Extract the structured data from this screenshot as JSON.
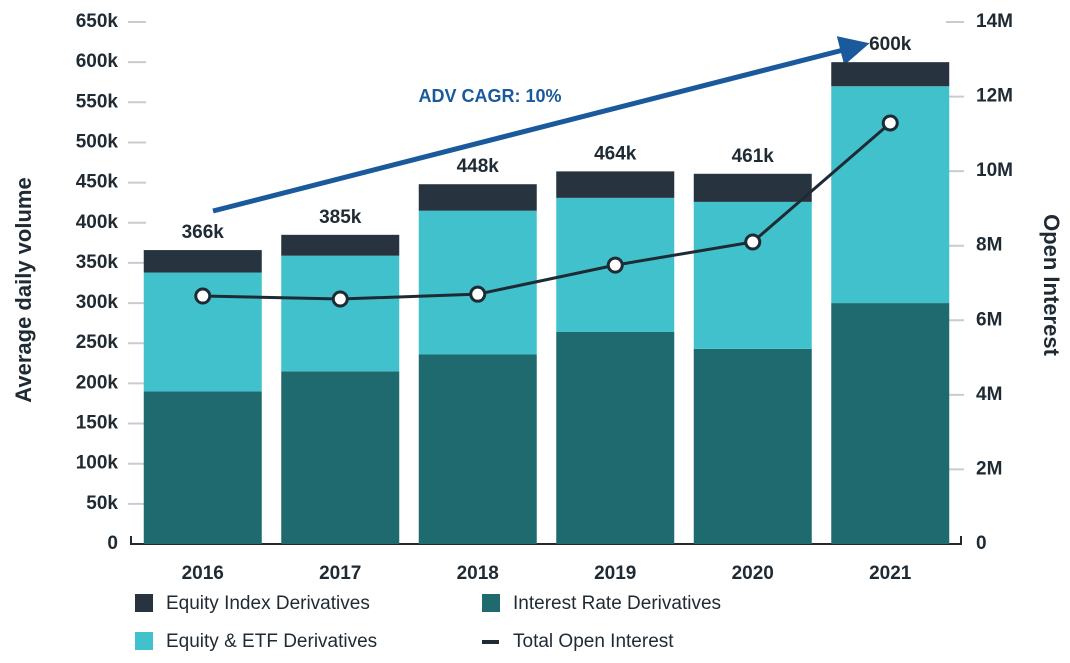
{
  "chart_data": {
    "type": "bar",
    "stacked": true,
    "categories": [
      "2016",
      "2017",
      "2018",
      "2019",
      "2020",
      "2021"
    ],
    "series": [
      {
        "name": "Interest Rate Derivatives",
        "color": "#1f6a6e",
        "values": [
          190000,
          215000,
          236000,
          264000,
          243000,
          300000
        ]
      },
      {
        "name": "Equity & ETF Derivatives",
        "color": "#40c1cb",
        "values": [
          148000,
          144000,
          179000,
          167000,
          183000,
          270000
        ]
      },
      {
        "name": "Equity Index Derivatives",
        "color": "#27343f",
        "values": [
          28000,
          26000,
          33000,
          33000,
          35000,
          30000
        ]
      },
      {
        "name": "Total Open Interest",
        "color": "#1e2b35",
        "type": "line",
        "axis": "y2",
        "values": [
          6650000,
          6570000,
          6700000,
          7480000,
          8100000,
          11290000
        ]
      }
    ],
    "totals": {
      "values": [
        366000,
        385000,
        448000,
        464000,
        461000,
        600000
      ],
      "value_labels": [
        "366k",
        "385k",
        "448k",
        "464k",
        "461k",
        "600k"
      ]
    },
    "ylabel": "Average daily volume",
    "y2label": "Open Interest",
    "annotations": [
      {
        "text": "ADV CAGR: 10%"
      }
    ],
    "ylim": [
      0,
      650000
    ],
    "yticks": [
      0,
      {
        "value": 50000,
        "label": "50k"
      },
      {
        "value": 100000,
        "label": "100k"
      },
      {
        "value": 150000,
        "label": "150k"
      },
      {
        "value": 200000,
        "label": "200k"
      },
      {
        "value": 250000,
        "label": "250k"
      },
      {
        "value": 300000,
        "label": "300k"
      },
      {
        "value": 350000,
        "label": "350k"
      },
      {
        "value": 400000,
        "label": "400k"
      },
      {
        "value": 450000,
        "label": "450k"
      },
      {
        "value": 500000,
        "label": "500k"
      },
      {
        "value": 550000,
        "label": "550k"
      },
      {
        "value": 600000,
        "label": "600k"
      },
      {
        "value": 650000,
        "label": "650k"
      }
    ],
    "y2lim": [
      0,
      14000000
    ],
    "y2ticks": [
      0,
      {
        "value": 2000000,
        "label": "2M"
      },
      {
        "value": 4000000,
        "label": "4M"
      },
      {
        "value": 6000000,
        "label": "6M"
      },
      {
        "value": 8000000,
        "label": "8M"
      },
      {
        "value": 10000000,
        "label": "10M"
      },
      {
        "value": 12000000,
        "label": "12M"
      },
      {
        "value": 14000000,
        "label": "14M"
      }
    ]
  }
}
